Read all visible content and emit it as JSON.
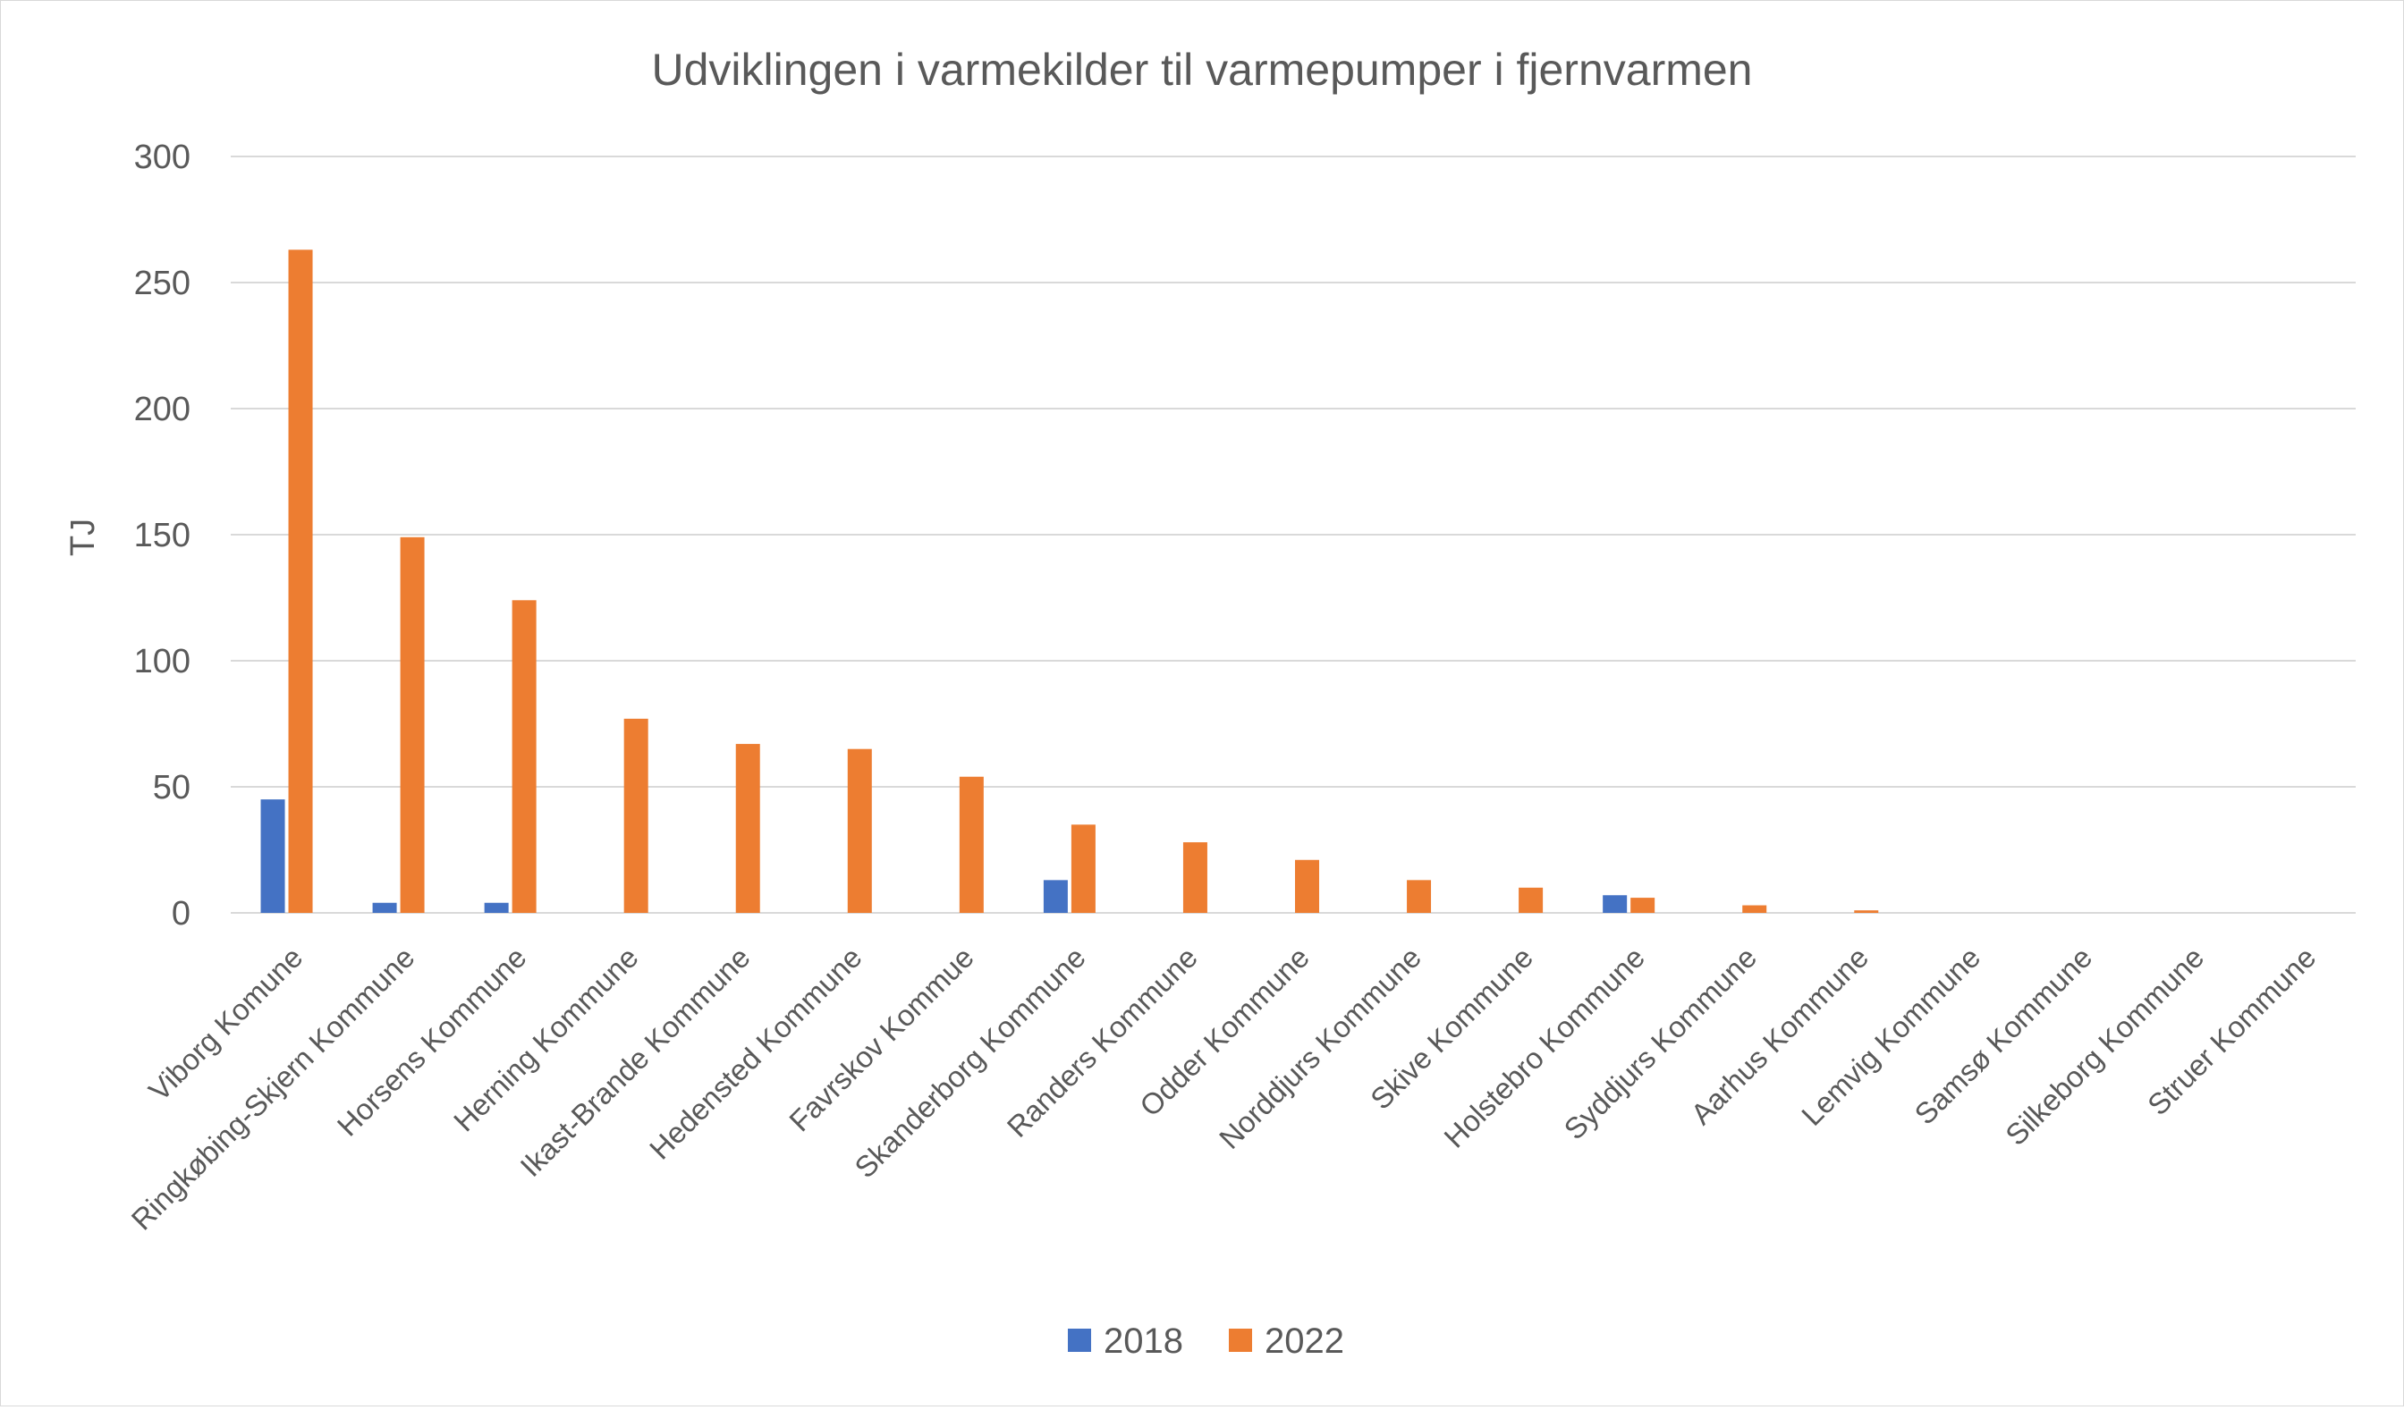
{
  "chart_data": {
    "type": "bar",
    "title": "Udviklingen i varmekilder til varmepumper i fjernvarmen",
    "ylabel": "TJ",
    "xlabel": "",
    "ylim": [
      0,
      300
    ],
    "yticks": [
      0,
      50,
      100,
      150,
      200,
      250,
      300
    ],
    "grid": true,
    "legend_position": "bottom",
    "categories": [
      "Viborg Komune",
      "Ringkøbing-Skjern Kommune",
      "Horsens Kommune",
      "Herning Kommune",
      "Ikast-Brande Kommune",
      "Hedensted Kommune",
      "Favrskov Kommue",
      "Skanderborg Kommune",
      "Randers Kommune",
      "Odder Kommune",
      "Norddjurs Kommune",
      "Skive Kommune",
      "Holstebro Kommune",
      "Syddjurs Kommune",
      "Aarhus Kommune",
      "Lemvig Kommune",
      "Samsø Kommune",
      "Silkeborg Kommune",
      "Struer Kommune"
    ],
    "series": [
      {
        "name": "2018",
        "color": "#4472c4",
        "values": [
          45,
          4,
          4,
          0,
          0,
          0,
          0,
          13,
          0,
          0,
          0,
          0,
          7,
          0,
          0,
          0,
          0,
          0,
          0
        ]
      },
      {
        "name": "2022",
        "color": "#ed7d31",
        "values": [
          263,
          149,
          124,
          77,
          67,
          65,
          54,
          35,
          28,
          21,
          13,
          10,
          6,
          3,
          1,
          0,
          0,
          0,
          0
        ]
      }
    ]
  }
}
